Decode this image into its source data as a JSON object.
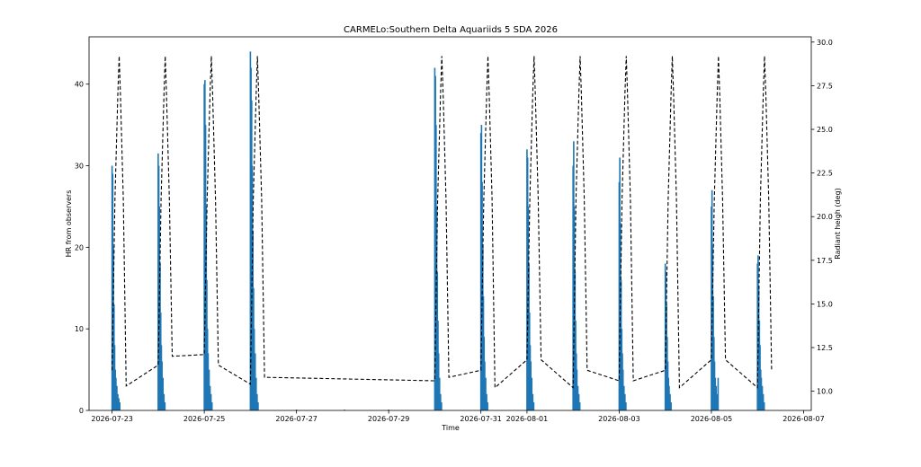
{
  "chart_data": {
    "type": "bar",
    "title": "CARMELo:Southern Delta Aquariids 5 SDA 2026",
    "xlabel": "Time",
    "ylabel": "HR from observers",
    "ylabel_right": "Radiant heigh (deg)",
    "xlim": [
      "2026-07-22T12:00",
      "2026-08-07T04:00"
    ],
    "ylim": [
      0,
      45.8
    ],
    "ylim_right": [
      8.9,
      30.3
    ],
    "x_ticks": [
      "2026-07-23",
      "2026-07-25",
      "2026-07-27",
      "2026-07-29",
      "2026-07-31",
      "2026-08-01",
      "2026-08-03",
      "2026-08-05",
      "2026-08-07"
    ],
    "y_ticks": [
      0,
      10,
      20,
      30,
      40
    ],
    "y_ticks_right": [
      "10.0",
      "12.5",
      "15.0",
      "17.5",
      "20.0",
      "22.5",
      "25.0",
      "27.5",
      "30.0"
    ],
    "y_ticks_right_values": [
      10.0,
      12.5,
      15.0,
      17.5,
      20.0,
      22.5,
      25.0,
      27.5,
      30.0
    ],
    "grid": false,
    "bar_color": "#1f77b4",
    "line_color": "#000000",
    "line_style": "dashed",
    "series": [
      {
        "axis": "left",
        "kind": "bar",
        "points": [
          [
            "2026-07-23T00:00",
            30
          ],
          [
            "2026-07-23T00:20",
            29
          ],
          [
            "2026-07-23T00:40",
            20
          ],
          [
            "2026-07-23T01:00",
            13
          ],
          [
            "2026-07-23T01:20",
            8
          ],
          [
            "2026-07-23T01:40",
            5
          ],
          [
            "2026-07-23T02:00",
            4
          ],
          [
            "2026-07-23T02:30",
            3
          ],
          [
            "2026-07-23T03:00",
            2
          ],
          [
            "2026-07-23T03:30",
            1.5
          ],
          [
            "2026-07-23T04:00",
            1
          ],
          [
            "2026-07-24T00:00",
            31.5
          ],
          [
            "2026-07-24T00:20",
            30
          ],
          [
            "2026-07-24T00:40",
            25
          ],
          [
            "2026-07-24T01:00",
            18
          ],
          [
            "2026-07-24T01:20",
            12
          ],
          [
            "2026-07-24T01:40",
            8
          ],
          [
            "2026-07-24T02:00",
            6
          ],
          [
            "2026-07-24T02:30",
            4
          ],
          [
            "2026-07-24T03:00",
            2
          ],
          [
            "2026-07-24T03:30",
            1
          ],
          [
            "2026-07-25T00:00",
            40
          ],
          [
            "2026-07-25T00:20",
            40.5
          ],
          [
            "2026-07-25T00:40",
            35
          ],
          [
            "2026-07-25T01:00",
            25
          ],
          [
            "2026-07-25T01:20",
            16
          ],
          [
            "2026-07-25T01:40",
            10
          ],
          [
            "2026-07-25T02:00",
            7
          ],
          [
            "2026-07-25T02:30",
            5
          ],
          [
            "2026-07-25T03:00",
            3
          ],
          [
            "2026-07-25T03:30",
            2
          ],
          [
            "2026-07-25T04:00",
            1
          ],
          [
            "2026-07-26T00:00",
            44
          ],
          [
            "2026-07-26T00:20",
            42
          ],
          [
            "2026-07-26T00:40",
            38
          ],
          [
            "2026-07-26T01:00",
            30
          ],
          [
            "2026-07-26T01:20",
            22
          ],
          [
            "2026-07-26T01:40",
            15
          ],
          [
            "2026-07-26T02:00",
            10
          ],
          [
            "2026-07-26T02:30",
            7
          ],
          [
            "2026-07-26T03:00",
            4
          ],
          [
            "2026-07-26T03:30",
            2
          ],
          [
            "2026-07-26T04:00",
            1
          ],
          [
            "2026-07-27T00:00",
            0.1
          ],
          [
            "2026-07-28T01:00",
            0.1
          ],
          [
            "2026-07-29T00:00",
            0.1
          ],
          [
            "2026-07-30T00:00",
            42
          ],
          [
            "2026-07-30T00:20",
            41
          ],
          [
            "2026-07-30T00:40",
            35
          ],
          [
            "2026-07-30T01:00",
            25
          ],
          [
            "2026-07-30T01:20",
            17
          ],
          [
            "2026-07-30T01:40",
            11
          ],
          [
            "2026-07-30T02:00",
            7
          ],
          [
            "2026-07-30T02:30",
            4
          ],
          [
            "2026-07-30T03:00",
            2
          ],
          [
            "2026-07-30T03:30",
            1
          ],
          [
            "2026-07-31T00:00",
            34
          ],
          [
            "2026-07-31T00:20",
            35
          ],
          [
            "2026-07-31T00:40",
            28
          ],
          [
            "2026-07-31T01:00",
            20
          ],
          [
            "2026-07-31T01:20",
            14
          ],
          [
            "2026-07-31T01:40",
            9
          ],
          [
            "2026-07-31T02:00",
            6
          ],
          [
            "2026-07-31T02:30",
            4
          ],
          [
            "2026-07-31T03:00",
            2
          ],
          [
            "2026-07-31T03:30",
            1
          ],
          [
            "2026-08-01T00:00",
            32
          ],
          [
            "2026-08-01T00:20",
            31
          ],
          [
            "2026-08-01T00:40",
            25
          ],
          [
            "2026-08-01T01:00",
            18
          ],
          [
            "2026-08-01T01:20",
            12
          ],
          [
            "2026-08-01T01:40",
            8
          ],
          [
            "2026-08-01T02:00",
            6
          ],
          [
            "2026-08-01T02:30",
            4
          ],
          [
            "2026-08-01T03:00",
            2
          ],
          [
            "2026-08-01T03:30",
            1
          ],
          [
            "2026-08-02T00:00",
            30
          ],
          [
            "2026-08-02T00:20",
            33
          ],
          [
            "2026-08-02T00:40",
            25
          ],
          [
            "2026-08-02T01:00",
            17
          ],
          [
            "2026-08-02T01:20",
            11
          ],
          [
            "2026-08-02T01:40",
            7
          ],
          [
            "2026-08-02T02:00",
            5
          ],
          [
            "2026-08-02T02:30",
            3
          ],
          [
            "2026-08-02T03:00",
            2
          ],
          [
            "2026-08-02T03:30",
            1
          ],
          [
            "2026-08-03T00:00",
            28
          ],
          [
            "2026-08-03T00:20",
            31
          ],
          [
            "2026-08-03T00:40",
            23
          ],
          [
            "2026-08-03T01:00",
            16
          ],
          [
            "2026-08-03T01:20",
            10
          ],
          [
            "2026-08-03T01:40",
            7
          ],
          [
            "2026-08-03T02:00",
            5
          ],
          [
            "2026-08-03T02:30",
            3
          ],
          [
            "2026-08-03T03:00",
            2
          ],
          [
            "2026-08-03T03:30",
            1
          ],
          [
            "2026-08-04T00:00",
            18
          ],
          [
            "2026-08-04T00:20",
            17
          ],
          [
            "2026-08-04T00:40",
            13
          ],
          [
            "2026-08-04T01:00",
            9
          ],
          [
            "2026-08-04T01:20",
            6
          ],
          [
            "2026-08-04T01:40",
            4
          ],
          [
            "2026-08-04T02:00",
            3
          ],
          [
            "2026-08-04T02:30",
            2
          ],
          [
            "2026-08-04T03:00",
            1
          ],
          [
            "2026-08-05T00:00",
            25
          ],
          [
            "2026-08-05T00:20",
            27
          ],
          [
            "2026-08-05T00:40",
            20
          ],
          [
            "2026-08-05T01:00",
            14
          ],
          [
            "2026-08-05T01:20",
            9
          ],
          [
            "2026-08-05T01:40",
            6
          ],
          [
            "2026-08-05T02:00",
            4
          ],
          [
            "2026-08-05T02:30",
            3
          ],
          [
            "2026-08-05T03:00",
            2
          ],
          [
            "2026-08-05T03:30",
            4
          ],
          [
            "2026-08-06T00:00",
            18
          ],
          [
            "2026-08-06T00:20",
            19
          ],
          [
            "2026-08-06T00:40",
            15
          ],
          [
            "2026-08-06T01:00",
            11
          ],
          [
            "2026-08-06T01:20",
            8
          ],
          [
            "2026-08-06T01:40",
            5
          ],
          [
            "2026-08-06T02:00",
            4
          ],
          [
            "2026-08-06T02:30",
            3
          ],
          [
            "2026-08-06T03:00",
            2
          ],
          [
            "2026-08-06T03:30",
            1
          ]
        ]
      },
      {
        "axis": "right",
        "kind": "line",
        "points": [
          [
            "2026-07-23T00:00",
            11.2
          ],
          [
            "2026-07-23T01:30",
            21
          ],
          [
            "2026-07-23T03:00",
            27
          ],
          [
            "2026-07-23T03:40",
            29.2
          ],
          [
            "2026-07-23T04:20",
            27
          ],
          [
            "2026-07-23T05:50",
            21
          ],
          [
            "2026-07-23T07:20",
            10.3
          ],
          [
            "2026-07-24T00:00",
            11.5
          ],
          [
            "2026-07-24T01:30",
            21
          ],
          [
            "2026-07-24T03:00",
            27
          ],
          [
            "2026-07-24T03:40",
            29.2
          ],
          [
            "2026-07-24T04:20",
            27
          ],
          [
            "2026-07-24T05:50",
            21
          ],
          [
            "2026-07-24T07:20",
            12.0
          ],
          [
            "2026-07-25T00:00",
            12.1
          ],
          [
            "2026-07-25T01:30",
            21
          ],
          [
            "2026-07-25T03:00",
            27
          ],
          [
            "2026-07-25T03:40",
            29.2
          ],
          [
            "2026-07-25T04:20",
            27
          ],
          [
            "2026-07-25T05:50",
            21
          ],
          [
            "2026-07-25T07:20",
            11.5
          ],
          [
            "2026-07-26T00:00",
            10.4
          ],
          [
            "2026-07-26T01:30",
            21
          ],
          [
            "2026-07-26T03:00",
            27
          ],
          [
            "2026-07-26T03:40",
            29.2
          ],
          [
            "2026-07-26T04:20",
            27
          ],
          [
            "2026-07-26T05:50",
            21
          ],
          [
            "2026-07-26T07:20",
            10.8
          ],
          [
            "2026-07-30T00:00",
            10.6
          ],
          [
            "2026-07-30T01:30",
            21
          ],
          [
            "2026-07-30T03:00",
            27
          ],
          [
            "2026-07-30T03:40",
            29.2
          ],
          [
            "2026-07-30T04:20",
            27
          ],
          [
            "2026-07-30T05:50",
            21
          ],
          [
            "2026-07-30T07:20",
            10.8
          ],
          [
            "2026-07-31T00:00",
            11.2
          ],
          [
            "2026-07-31T01:30",
            21
          ],
          [
            "2026-07-31T03:00",
            27
          ],
          [
            "2026-07-31T03:40",
            29.2
          ],
          [
            "2026-07-31T04:20",
            27
          ],
          [
            "2026-07-31T05:50",
            21
          ],
          [
            "2026-07-31T07:20",
            10.2
          ],
          [
            "2026-08-01T00:00",
            11.8
          ],
          [
            "2026-08-01T01:30",
            21
          ],
          [
            "2026-08-01T03:00",
            27
          ],
          [
            "2026-08-01T03:40",
            29.2
          ],
          [
            "2026-08-01T04:20",
            27
          ],
          [
            "2026-08-01T05:50",
            21
          ],
          [
            "2026-08-01T07:20",
            11.8
          ],
          [
            "2026-08-02T00:00",
            10.2
          ],
          [
            "2026-08-02T01:30",
            21
          ],
          [
            "2026-08-02T03:00",
            27
          ],
          [
            "2026-08-02T03:40",
            29.2
          ],
          [
            "2026-08-02T04:20",
            27
          ],
          [
            "2026-08-02T05:50",
            21
          ],
          [
            "2026-08-02T07:20",
            11.2
          ],
          [
            "2026-08-03T00:00",
            10.6
          ],
          [
            "2026-08-03T01:30",
            21
          ],
          [
            "2026-08-03T03:00",
            27
          ],
          [
            "2026-08-03T03:40",
            29.2
          ],
          [
            "2026-08-03T04:20",
            27
          ],
          [
            "2026-08-03T05:50",
            21
          ],
          [
            "2026-08-03T07:20",
            10.6
          ],
          [
            "2026-08-04T00:00",
            11.2
          ],
          [
            "2026-08-04T01:30",
            21
          ],
          [
            "2026-08-04T03:00",
            27
          ],
          [
            "2026-08-04T03:40",
            29.2
          ],
          [
            "2026-08-04T04:20",
            27
          ],
          [
            "2026-08-04T05:50",
            21
          ],
          [
            "2026-08-04T07:20",
            10.2
          ],
          [
            "2026-08-05T00:00",
            11.8
          ],
          [
            "2026-08-05T01:30",
            21
          ],
          [
            "2026-08-05T03:00",
            27
          ],
          [
            "2026-08-05T03:40",
            29.2
          ],
          [
            "2026-08-05T04:20",
            27
          ],
          [
            "2026-08-05T05:50",
            21
          ],
          [
            "2026-08-05T07:20",
            11.8
          ],
          [
            "2026-08-06T00:00",
            10.2
          ],
          [
            "2026-08-06T01:30",
            21
          ],
          [
            "2026-08-06T03:00",
            27
          ],
          [
            "2026-08-06T03:40",
            29.2
          ],
          [
            "2026-08-06T04:20",
            27
          ],
          [
            "2026-08-06T05:50",
            21
          ],
          [
            "2026-08-06T07:20",
            11.2
          ]
        ]
      }
    ]
  }
}
